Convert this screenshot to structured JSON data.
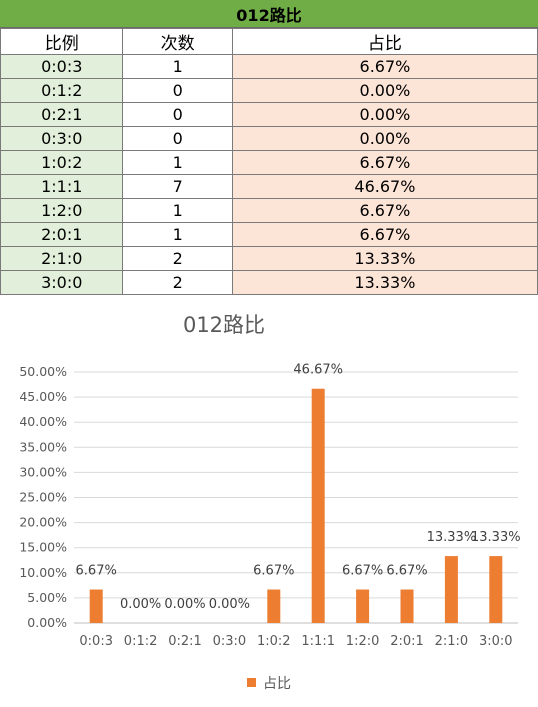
{
  "table": {
    "title": "012路比",
    "headers": [
      "比例",
      "次数",
      "占比"
    ],
    "rows": [
      [
        "0:0:3",
        "1",
        "6.67%"
      ],
      [
        "0:1:2",
        "0",
        "0.00%"
      ],
      [
        "0:2:1",
        "0",
        "0.00%"
      ],
      [
        "0:3:0",
        "0",
        "0.00%"
      ],
      [
        "1:0:2",
        "1",
        "6.67%"
      ],
      [
        "1:1:1",
        "7",
        "46.67%"
      ],
      [
        "1:2:0",
        "1",
        "6.67%"
      ],
      [
        "2:0:1",
        "1",
        "6.67%"
      ],
      [
        "2:1:0",
        "2",
        "13.33%"
      ],
      [
        "3:0:0",
        "2",
        "13.33%"
      ]
    ]
  },
  "chart_data": {
    "type": "bar",
    "title": "012路比",
    "categories": [
      "0:0:3",
      "0:1:2",
      "0:2:1",
      "0:3:0",
      "1:0:2",
      "1:1:1",
      "1:2:0",
      "2:0:1",
      "2:1:0",
      "3:0:0"
    ],
    "series": [
      {
        "name": "占比",
        "values": [
          6.67,
          0,
          0,
          0,
          6.67,
          46.67,
          6.67,
          6.67,
          13.33,
          13.33
        ],
        "color": "#ed7d31"
      }
    ],
    "data_labels": [
      "6.67%",
      "0.00%",
      "0.00%",
      "0.00%",
      "6.67%",
      "46.67%",
      "6.67%",
      "6.67%",
      "13.33%",
      "13.33%"
    ],
    "y_ticks": [
      "0.00%",
      "5.00%",
      "10.00%",
      "15.00%",
      "20.00%",
      "25.00%",
      "30.00%",
      "35.00%",
      "40.00%",
      "45.00%",
      "50.00%"
    ],
    "ylim": [
      0,
      50
    ],
    "grid": true,
    "legend_position": "bottom"
  }
}
